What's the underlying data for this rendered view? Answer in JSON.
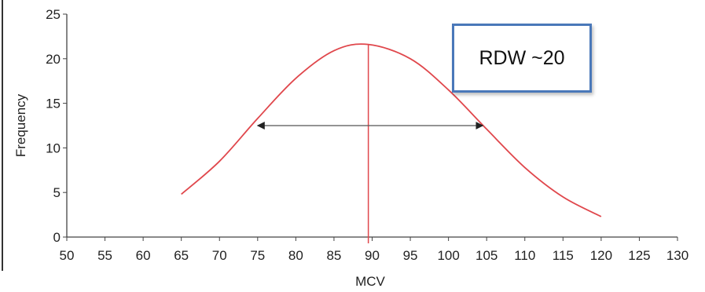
{
  "chart_data": {
    "type": "line",
    "xlabel": "MCV",
    "ylabel": "Frequency",
    "xlim": [
      50,
      130
    ],
    "ylim": [
      0,
      25
    ],
    "x_ticks": [
      50,
      55,
      60,
      65,
      70,
      75,
      80,
      85,
      90,
      95,
      100,
      105,
      110,
      115,
      120,
      125,
      130
    ],
    "y_ticks": [
      0,
      5,
      10,
      15,
      20,
      25
    ],
    "grid": false,
    "series": [
      {
        "color": "#e0474c",
        "x": [
          65,
          70,
          75,
          80,
          85,
          89.5,
          95,
          100,
          105,
          110,
          115,
          120
        ],
        "y": [
          4.8,
          8.5,
          13.3,
          17.8,
          20.9,
          21.6,
          20.0,
          16.5,
          12.1,
          7.8,
          4.5,
          2.3
        ]
      }
    ],
    "annotations": {
      "vertical_line_x": 89.5,
      "vertical_line_color": "#e0474c",
      "arrow": {
        "x_start": 75,
        "x_end": 104.5,
        "y": 12.5,
        "color": "#555555"
      },
      "callout": {
        "text": "RDW ~20",
        "border_color": "#4a78b9"
      }
    }
  }
}
